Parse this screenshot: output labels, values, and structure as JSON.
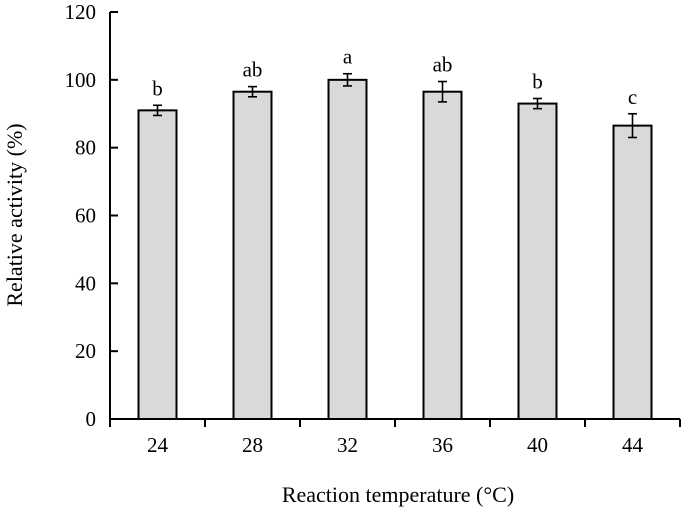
{
  "chart_data": {
    "type": "bar",
    "title": "",
    "xlabel": "Reaction temperature (°C)",
    "ylabel": "Relative activity (%)",
    "categories": [
      "24",
      "28",
      "32",
      "36",
      "40",
      "44"
    ],
    "values": [
      91,
      96.5,
      100,
      96.5,
      93,
      86.5
    ],
    "errors": [
      1.5,
      1.5,
      1.8,
      3,
      1.5,
      3.5
    ],
    "significance": [
      "b",
      "ab",
      "a",
      "ab",
      "b",
      "c"
    ],
    "ylim": [
      0,
      120
    ],
    "yticks": [
      "0",
      "20",
      "40",
      "60",
      "80",
      "100",
      "120"
    ],
    "grid": false,
    "legend": "none",
    "bar_color": "#d9d9d9"
  }
}
